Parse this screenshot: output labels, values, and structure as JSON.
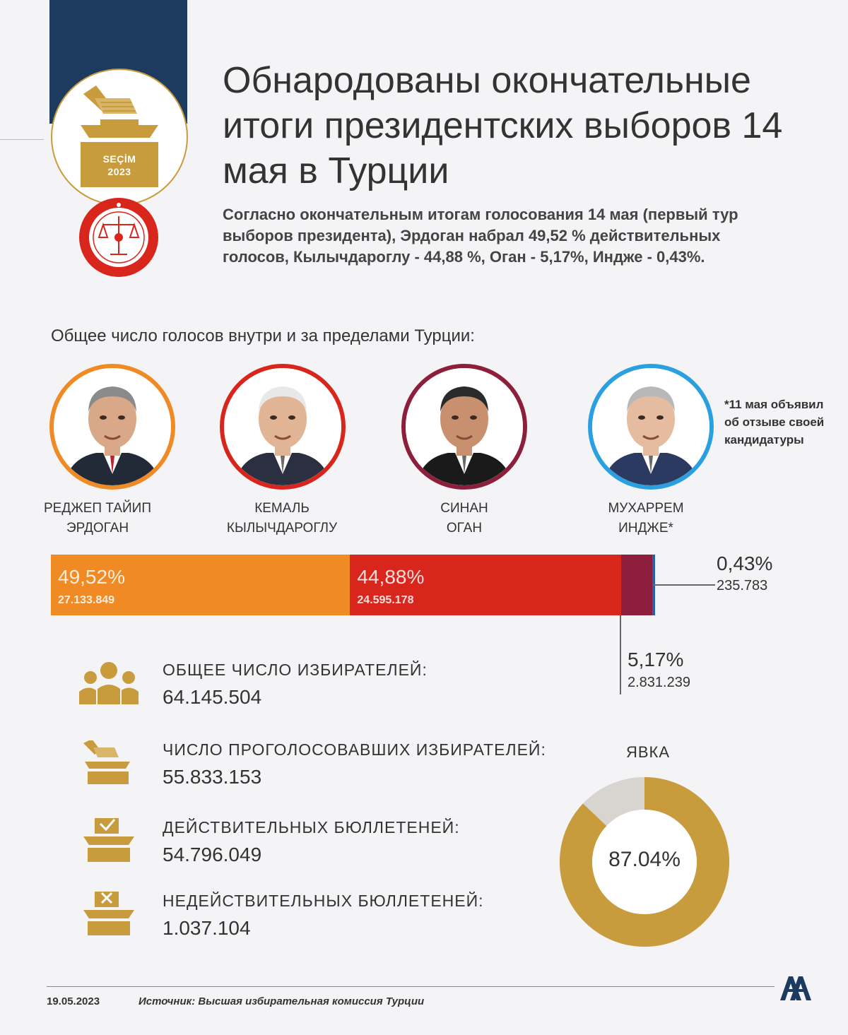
{
  "header": {
    "logo_line1": "SEÇİM",
    "logo_line2": "2023",
    "title": "Обнародованы окончательные итоги президентских выборов 14 мая в Турции",
    "subtitle": "Согласно окончательным итогам голосования 14 мая (первый тур выборов президента), Эрдоган набрал 49,52 % действительных голосов, Кылычдароглу - 44,88 %, Оган - 5,17%, Индже - 0,43%."
  },
  "section_label": "Общее число голосов внутри и за пределами Турции:",
  "candidates": [
    {
      "line1": "РЕДЖЕП ТАЙИП",
      "line2": "ЭРДОГАН",
      "ring_color": "#f08a24",
      "percent": "49,52%",
      "votes": "27.133.849",
      "share": 49.52
    },
    {
      "line1": "КЕМАЛЬ",
      "line2": "КЫЛЫЧДАРОГЛУ",
      "ring_color": "#d9261c",
      "percent": "44,88%",
      "votes": "24.595.178",
      "share": 44.88
    },
    {
      "line1": "СИНАН",
      "line2": "ОГАН",
      "ring_color": "#8e1f3c",
      "percent": "5,17%",
      "votes": "2.831.239",
      "share": 5.17
    },
    {
      "line1": "МУХАРРЕМ",
      "line2": "ИНДЖЕ*",
      "ring_color": "#2aa0e0",
      "percent": "0,43%",
      "votes": "235.783",
      "share": 0.43
    }
  ],
  "note": "*11 мая объявил об отзыве своей кандидатуры",
  "stats": [
    {
      "icon": "people-icon",
      "label": "ОБЩЕЕ ЧИСЛО ИЗБИРАТЕЛЕЙ:",
      "value": "64.145.504"
    },
    {
      "icon": "ballot-box-icon",
      "label": "ЧИСЛО ПРОГОЛОСОВАВШИХ ИЗБИРАТЕЛЕЙ:",
      "value": "55.833.153"
    },
    {
      "icon": "ballot-check-icon",
      "label": "ДЕЙСТВИТЕЛЬНЫХ БЮЛЛЕТЕНЕЙ:",
      "value": "54.796.049"
    },
    {
      "icon": "ballot-x-icon",
      "label": "НЕДЕЙСТВИТЕЛЬНЫХ БЮЛЛЕТЕНЕЙ:",
      "value": "1.037.104"
    }
  ],
  "turnout": {
    "label": "ЯВКА",
    "value_text": "87.04%",
    "value": 87.04
  },
  "colors": {
    "gold": "#c89b3c",
    "navy": "#1d3a5f",
    "donut_rest": "#d8d4d0"
  },
  "footer": {
    "date": "19.05.2023",
    "source": "Источник: Высшая избирательная комиссия Турции"
  }
}
